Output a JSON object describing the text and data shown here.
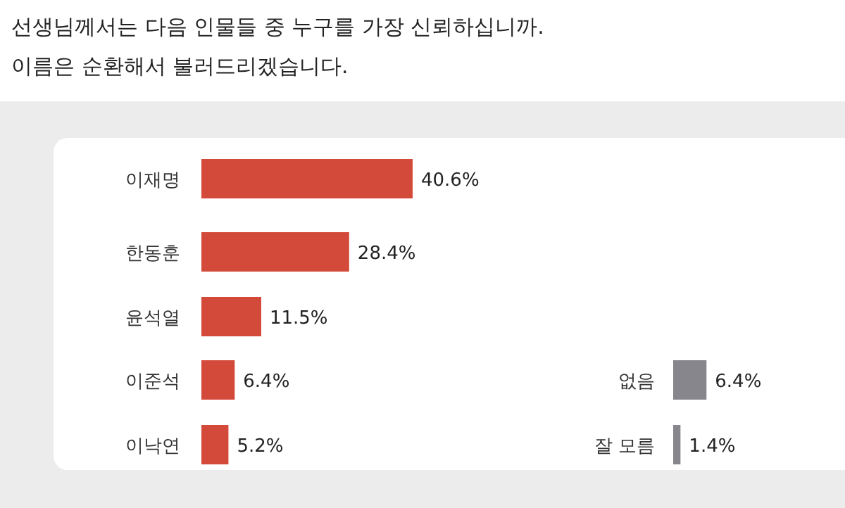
{
  "chart_data": [
    {
      "type": "bar",
      "orientation": "horizontal",
      "title": "선생님께서는 다음 인물들 중 누구를 가장 신뢰하십니까.",
      "subtitle": "이름은 순환해서 불러드리겠습니다.",
      "categories": [
        "이재명",
        "한동훈",
        "윤석열",
        "이준석",
        "이낙연"
      ],
      "values": [
        40.6,
        28.4,
        11.5,
        6.4,
        5.2
      ],
      "color": "#d44a3a",
      "value_labels": [
        "40.6%",
        "28.4%",
        "11.5%",
        "6.4%",
        "5.2%"
      ]
    },
    {
      "type": "bar",
      "orientation": "horizontal",
      "categories": [
        "없음",
        "잘 모름"
      ],
      "values": [
        6.4,
        1.4
      ],
      "color": "#86868c",
      "value_labels": [
        "6.4%",
        "1.4%"
      ]
    }
  ]
}
